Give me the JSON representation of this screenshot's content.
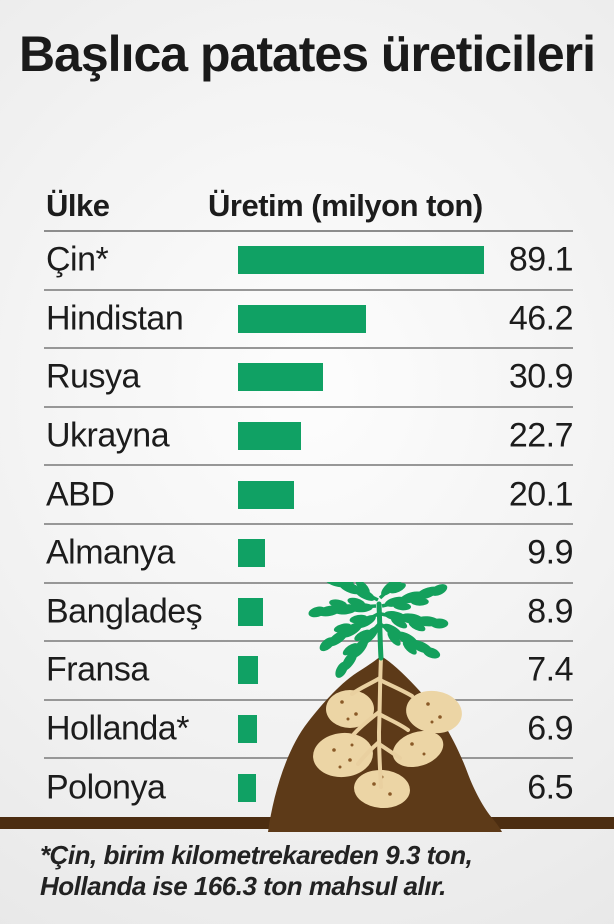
{
  "title": "Başlıca patates üreticileri",
  "table": {
    "col_country": "Ülke",
    "col_production": "Üretim (milyon ton)"
  },
  "footnote": "*Çin, birim kilometrekareden 9.3 ton, Hollanda ise 166.3 ton mahsul alır.",
  "colors": {
    "bar_green": "#10a164",
    "leaf_green": "#14a05c",
    "soil_brown": "#5d3a18",
    "ground_brown": "#4c2d11",
    "potato_tan": "#ecd5a5",
    "root_tan": "#e9d0a0",
    "dot_brown": "#8a5a28",
    "line_gray": "#979797",
    "text_dark": "#1c1c1c"
  },
  "chart_data": {
    "type": "bar",
    "orientation": "horizontal",
    "title": "Başlıca patates üreticileri",
    "xlabel": "Üretim (milyon ton)",
    "categories": [
      "Çin*",
      "Hindistan",
      "Rusya",
      "Ukrayna",
      "ABD",
      "Almanya",
      "Bangladeş",
      "Fransa",
      "Hollanda*",
      "Polonya"
    ],
    "values": [
      89.1,
      46.2,
      30.9,
      22.7,
      20.1,
      9.9,
      8.9,
      7.4,
      6.9,
      6.5
    ],
    "xlim": [
      0,
      89.1
    ],
    "grid": false,
    "legend": false,
    "footnote": "*Çin, birim kilometrekareden 9.3 ton, Hollanda ise 166.3 ton mahsul alır."
  }
}
